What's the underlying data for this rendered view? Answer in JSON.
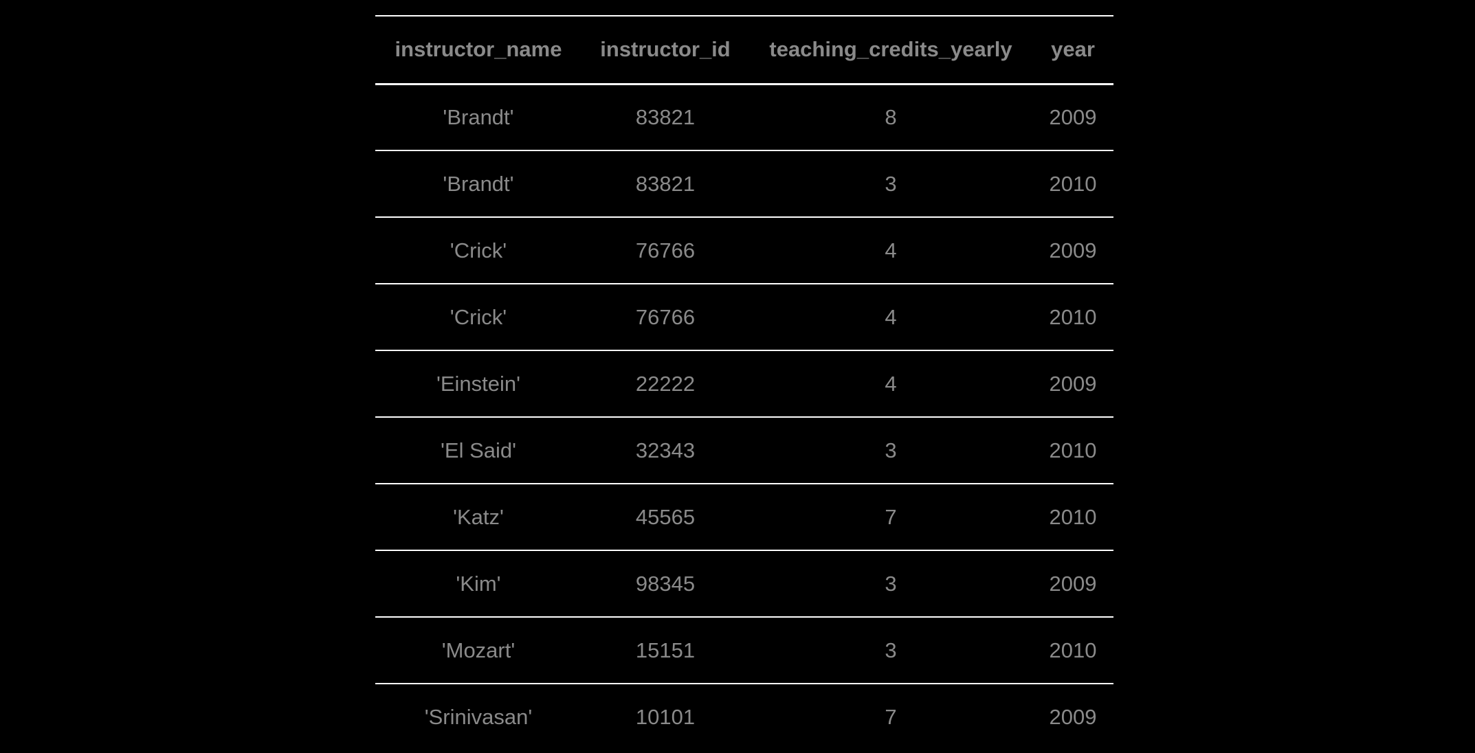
{
  "table": {
    "columns": [
      "instructor_name",
      "instructor_id",
      "teaching_credits_yearly",
      "year"
    ],
    "rows": [
      [
        "'Brandt'",
        "83821",
        "8",
        "2009"
      ],
      [
        "'Brandt'",
        "83821",
        "3",
        "2010"
      ],
      [
        "'Crick'",
        "76766",
        "4",
        "2009"
      ],
      [
        "'Crick'",
        "76766",
        "4",
        "2010"
      ],
      [
        "'Einstein'",
        "22222",
        "4",
        "2009"
      ],
      [
        "'El Said'",
        "32343",
        "3",
        "2010"
      ],
      [
        "'Katz'",
        "45565",
        "7",
        "2010"
      ],
      [
        "'Kim'",
        "98345",
        "3",
        "2009"
      ],
      [
        "'Mozart'",
        "15151",
        "3",
        "2010"
      ],
      [
        "'Srinivasan'",
        "10101",
        "7",
        "2009"
      ]
    ]
  },
  "colors": {
    "background": "#000000",
    "text": "#8a8a8a",
    "rule": "#ffffff"
  }
}
